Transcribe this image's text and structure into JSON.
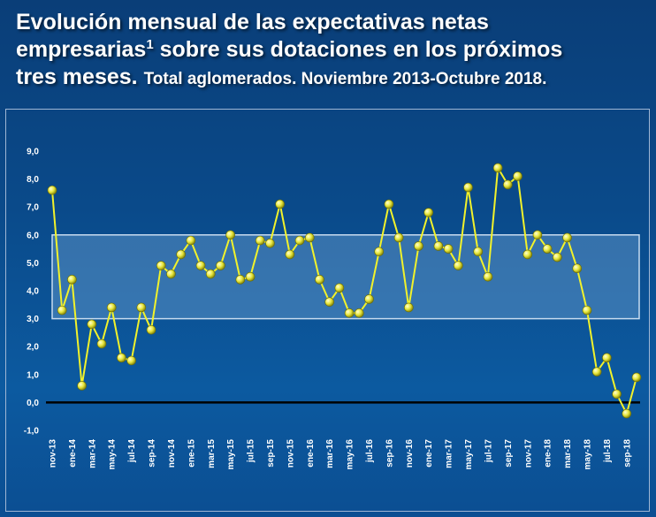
{
  "title": {
    "main_line1": "Evolución mensual de las expectativas netas",
    "main_line2_pre": "empresarias",
    "main_line2_sup": "1",
    "main_line2_post": " sobre sus dotaciones en los próximos",
    "main_line3": "tres meses.",
    "subtitle": "Total aglomerados. Noviembre 2013-Octubre 2018."
  },
  "colors": {
    "background": "#0a4a8a",
    "line": "#f2f22a",
    "marker": "#e6e63c",
    "band": "#6a9fd0",
    "zero_line": "#000000"
  },
  "chart_data": {
    "type": "line",
    "ylim": [
      -1.0,
      9.0
    ],
    "yticks": [
      "-1,0",
      "0,0",
      "1,0",
      "2,0",
      "3,0",
      "4,0",
      "5,0",
      "6,0",
      "7,0",
      "8,0",
      "9,0"
    ],
    "ytick_values": [
      -1,
      0,
      1,
      2,
      3,
      4,
      5,
      6,
      7,
      8,
      9
    ],
    "band": [
      3.0,
      6.0
    ],
    "grid": false,
    "x": [
      "nov-13",
      "dic-13",
      "ene-14",
      "feb-14",
      "mar-14",
      "abr-14",
      "may-14",
      "jun-14",
      "jul-14",
      "ago-14",
      "sep-14",
      "oct-14",
      "nov-14",
      "dic-14",
      "ene-15",
      "feb-15",
      "mar-15",
      "abr-15",
      "may-15",
      "jun-15",
      "jul-15",
      "ago-15",
      "sep-15",
      "oct-15",
      "nov-15",
      "dic-15",
      "ene-16",
      "feb-16",
      "mar-16",
      "abr-16",
      "may-16",
      "jun-16",
      "jul-16",
      "ago-16",
      "sep-16",
      "oct-16",
      "nov-16",
      "dic-16",
      "ene-17",
      "feb-17",
      "mar-17",
      "abr-17",
      "may-17",
      "jun-17",
      "jul-17",
      "ago-17",
      "sep-17",
      "oct-17",
      "nov-17",
      "dic-17",
      "ene-18",
      "feb-18",
      "mar-18",
      "abr-18",
      "may-18",
      "jun-18",
      "jul-18",
      "ago-18",
      "sep-18",
      "oct-18"
    ],
    "xtick_labels": [
      "nov-13",
      "ene-14",
      "mar-14",
      "may-14",
      "jul-14",
      "sep-14",
      "nov-14",
      "ene-15",
      "mar-15",
      "may-15",
      "jul-15",
      "sep-15",
      "nov-15",
      "ene-16",
      "mar-16",
      "may-16",
      "jul-16",
      "sep-16",
      "nov-16",
      "ene-17",
      "mar-17",
      "may-17",
      "jul-17",
      "sep-17",
      "nov-17",
      "ene-18",
      "mar-18",
      "may-18",
      "jul-18",
      "sep-18"
    ],
    "series": [
      {
        "values": [
          7.6,
          3.3,
          4.4,
          0.6,
          2.8,
          2.1,
          3.4,
          1.6,
          1.5,
          3.4,
          2.6,
          4.9,
          4.6,
          5.3,
          5.8,
          4.9,
          4.6,
          4.9,
          6.0,
          4.4,
          4.5,
          5.8,
          5.7,
          7.1,
          5.3,
          5.8,
          5.9,
          4.4,
          3.6,
          4.1,
          3.2,
          3.2,
          3.7,
          5.4,
          7.1,
          5.9,
          3.4,
          5.6,
          6.8,
          5.6,
          5.5,
          4.9,
          7.7,
          5.4,
          4.5,
          8.4,
          7.8,
          8.1,
          5.3,
          6.0,
          5.5,
          5.2,
          5.9,
          4.8,
          3.3,
          1.1,
          1.6,
          0.3,
          -0.4,
          0.9
        ]
      }
    ]
  }
}
